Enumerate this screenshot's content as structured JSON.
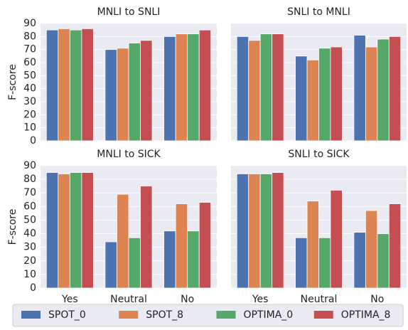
{
  "chart_data": [
    {
      "type": "bar",
      "title": "MNLI to SNLI",
      "ylabel": "F-score",
      "categories": [
        null,
        null,
        null
      ],
      "series": [
        {
          "name": "SPOT_0",
          "color": "#4c72b0",
          "values": [
            85,
            70,
            80
          ]
        },
        {
          "name": "SPOT_8",
          "color": "#dd8452",
          "values": [
            86,
            71,
            82
          ]
        },
        {
          "name": "OPTIMA_0",
          "color": "#55a868",
          "values": [
            85,
            75,
            82
          ]
        },
        {
          "name": "OPTIMA_8",
          "color": "#c44e52",
          "values": [
            86,
            77,
            85
          ]
        }
      ],
      "ylim": [
        0,
        90
      ],
      "yticks": [
        0,
        10,
        20,
        30,
        40,
        50,
        60,
        70,
        80,
        90
      ],
      "grid": true
    },
    {
      "type": "bar",
      "title": "SNLI to MNLI",
      "categories": [
        null,
        null,
        null
      ],
      "series": [
        {
          "name": "SPOT_0",
          "color": "#4c72b0",
          "values": [
            80,
            65,
            81
          ]
        },
        {
          "name": "SPOT_8",
          "color": "#dd8452",
          "values": [
            77,
            62,
            72
          ]
        },
        {
          "name": "OPTIMA_0",
          "color": "#55a868",
          "values": [
            82,
            71,
            78
          ]
        },
        {
          "name": "OPTIMA_8",
          "color": "#c44e52",
          "values": [
            82,
            72,
            80
          ]
        }
      ],
      "ylim": [
        0,
        90
      ],
      "yticks": [
        0,
        10,
        20,
        30,
        40,
        50,
        60,
        70,
        80,
        90
      ],
      "grid": true
    },
    {
      "type": "bar",
      "title": "MNLI to SICK",
      "ylabel": "F-score",
      "categories": [
        "Yes",
        "Neutral",
        "No"
      ],
      "series": [
        {
          "name": "SPOT_0",
          "color": "#4c72b0",
          "values": [
            85,
            34,
            42
          ]
        },
        {
          "name": "SPOT_8",
          "color": "#dd8452",
          "values": [
            84,
            69,
            62
          ]
        },
        {
          "name": "OPTIMA_0",
          "color": "#55a868",
          "values": [
            85,
            37,
            42
          ]
        },
        {
          "name": "OPTIMA_8",
          "color": "#c44e52",
          "values": [
            85,
            75,
            63
          ]
        }
      ],
      "ylim": [
        0,
        90
      ],
      "yticks": [
        0,
        10,
        20,
        30,
        40,
        50,
        60,
        70,
        80,
        90
      ],
      "grid": true
    },
    {
      "type": "bar",
      "title": "SNLI to SICK",
      "categories": [
        "Yes",
        "Neutral",
        "No"
      ],
      "series": [
        {
          "name": "SPOT_0",
          "color": "#4c72b0",
          "values": [
            84,
            37,
            41
          ]
        },
        {
          "name": "SPOT_8",
          "color": "#dd8452",
          "values": [
            84,
            64,
            57
          ]
        },
        {
          "name": "OPTIMA_0",
          "color": "#55a868",
          "values": [
            84,
            37,
            40
          ]
        },
        {
          "name": "OPTIMA_8",
          "color": "#c44e52",
          "values": [
            85,
            72,
            62
          ]
        }
      ],
      "ylim": [
        0,
        90
      ],
      "yticks": [
        0,
        10,
        20,
        30,
        40,
        50,
        60,
        70,
        80,
        90
      ],
      "grid": true
    }
  ]
}
